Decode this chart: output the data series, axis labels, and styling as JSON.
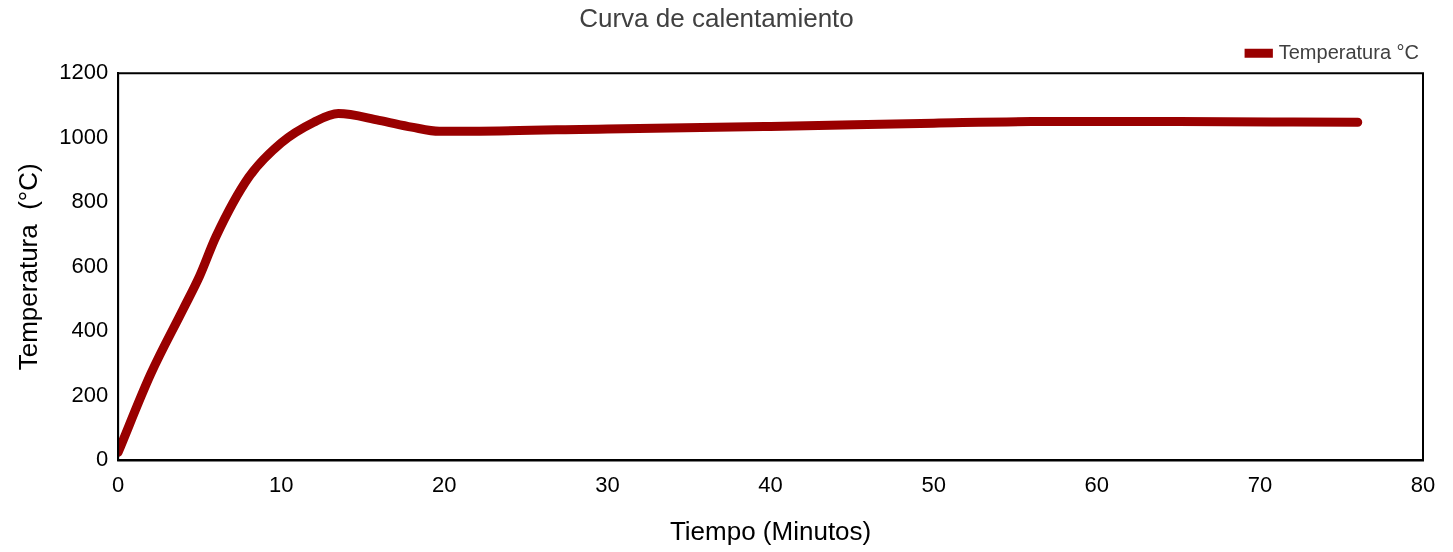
{
  "chart_data": {
    "type": "line",
    "title": "Curva de calentamiento",
    "xlabel": "Tiempo (Minutos)",
    "ylabel": "Temperatura  (°C)",
    "xlim": [
      0,
      80
    ],
    "xticks": [
      0,
      10,
      20,
      30,
      40,
      50,
      60,
      70,
      80
    ],
    "ylim": [
      0,
      1200
    ],
    "yticks": [
      0,
      200,
      400,
      600,
      800,
      1000,
      1200
    ],
    "grid": false,
    "legend": "top right",
    "marker": "none",
    "line_style": "solid",
    "series": [
      {
        "name": "Temperatura °C",
        "color": "#990000",
        "x": [
          0,
          2,
          4,
          5,
          6,
          8,
          10,
          12,
          13.5,
          16,
          18,
          19.7,
          30,
          40,
          50,
          56,
          65,
          76
        ],
        "values": [
          25,
          268,
          470,
          572,
          694,
          877,
          984,
          1048,
          1075,
          1054,
          1033,
          1020,
          1027,
          1035,
          1045,
          1050,
          1050,
          1048
        ]
      }
    ]
  }
}
